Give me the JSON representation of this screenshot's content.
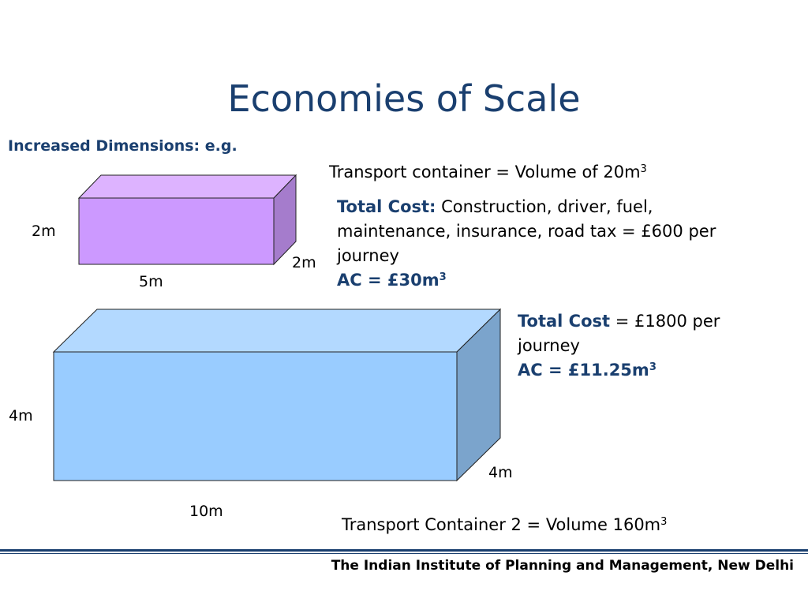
{
  "slide": {
    "title": "Economies of Scale",
    "subtitle": "Increased Dimensions: e.g."
  },
  "container1": {
    "volume_label": "Transport container = Volume of 20m",
    "volume_sup": "3",
    "total_cost_label": "Total Cost:",
    "total_cost_text": " Construction, driver, fuel, maintenance, insurance, road tax = £600 per journey",
    "ac_label": "AC = £30m",
    "ac_sup": "3",
    "dims": {
      "height": "2m",
      "width": "5m",
      "depth": "2m"
    },
    "colors": {
      "front": "#cc99ff",
      "top": "#ddb3ff",
      "side": "#a57ccc"
    }
  },
  "container2": {
    "total_cost_label": "Total Cost",
    "total_cost_text": " = £1800 per journey",
    "ac_label": "AC = £11.25m",
    "ac_sup": "3",
    "volume_label": "Transport Container 2 = Volume 160m",
    "volume_sup": "3",
    "dims": {
      "height": "4m",
      "width": "10m",
      "depth": "4m"
    },
    "colors": {
      "front": "#99ccff",
      "top": "#b3d9ff",
      "side": "#7ba4cc"
    }
  },
  "footer": {
    "text": "The Indian Institute of Planning and Management, New Delhi"
  },
  "theme": {
    "accent": "#1a3f6f"
  }
}
